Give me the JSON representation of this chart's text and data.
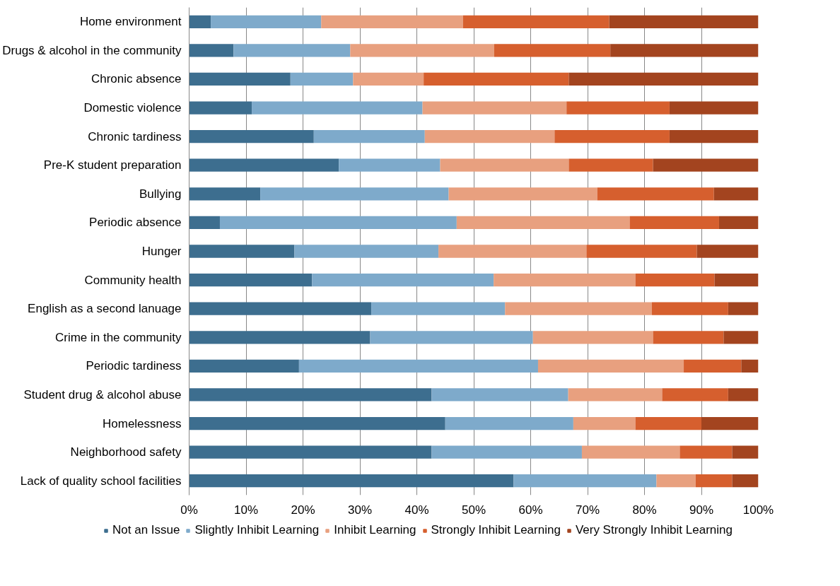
{
  "chart_data": {
    "type": "bar",
    "orientation": "horizontal",
    "stacked": true,
    "legend": "bottom",
    "grid": "x",
    "categories": [
      "Home environment",
      "Drugs & alcohol in the community",
      "Chronic absence",
      "Domestic violence",
      "Chronic tardiness",
      "Pre-K student preparation",
      "Bullying",
      "Periodic absence",
      "Hunger",
      "Community health",
      "English as a second lanuage",
      "Crime in the community",
      "Periodic tardiness",
      "Student drug & alcohol abuse",
      "Homelessness",
      "Neighborhood safety",
      "Lack of quality school facilities"
    ],
    "xlim": [
      0,
      100
    ],
    "xticks": [
      {
        "value": 0,
        "label": "0%"
      },
      {
        "value": 10,
        "label": "10%"
      },
      {
        "value": 20,
        "label": "20%"
      },
      {
        "value": 30,
        "label": "30%"
      },
      {
        "value": 40,
        "label": "40%"
      },
      {
        "value": 50,
        "label": "50%"
      },
      {
        "value": 60,
        "label": "60%"
      },
      {
        "value": 70,
        "label": "70%"
      },
      {
        "value": 80,
        "label": "80%"
      },
      {
        "value": 90,
        "label": "90%"
      },
      {
        "value": 100,
        "label": "100%"
      }
    ],
    "series": [
      {
        "name": "Not an Issue",
        "color": "#3d6e8f",
        "values": [
          3.8,
          7.8,
          17.8,
          11.0,
          21.9,
          26.3,
          12.5,
          5.4,
          18.5,
          21.6,
          32.0,
          31.8,
          19.3,
          42.6,
          45.0,
          42.6,
          57.0
        ]
      },
      {
        "name": "Slightly Inhibit Learning",
        "color": "#7eaacb",
        "values": [
          19.4,
          20.5,
          11.0,
          30.0,
          19.5,
          17.8,
          33.1,
          41.6,
          25.3,
          31.9,
          23.5,
          28.6,
          42.0,
          24.0,
          22.5,
          26.4,
          25.1
        ]
      },
      {
        "name": "Inhibit Learning",
        "color": "#e8a07f",
        "values": [
          24.9,
          25.3,
          12.4,
          25.3,
          22.8,
          22.6,
          26.1,
          30.4,
          26.0,
          24.9,
          25.8,
          21.1,
          25.6,
          16.5,
          10.9,
          17.2,
          6.9
        ]
      },
      {
        "name": "Strongly Inhibit Learning",
        "color": "#d65f2e",
        "values": [
          25.7,
          20.4,
          25.5,
          18.1,
          20.2,
          14.8,
          20.5,
          15.7,
          19.4,
          13.9,
          13.4,
          12.4,
          10.1,
          11.6,
          11.6,
          9.2,
          6.4
        ]
      },
      {
        "name": "Very Strongly Inhibit Learning",
        "color": "#a3441f",
        "values": [
          26.2,
          26.0,
          33.3,
          15.6,
          15.6,
          18.5,
          7.8,
          6.9,
          10.8,
          7.7,
          5.3,
          6.1,
          3.0,
          5.3,
          10.0,
          4.6,
          4.6
        ]
      }
    ]
  }
}
